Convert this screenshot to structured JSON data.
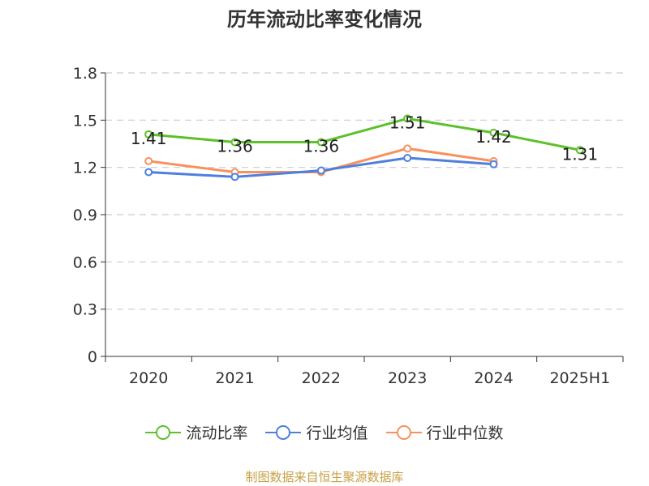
{
  "chart_data": {
    "type": "line",
    "title": "历年流动比率变化情况",
    "categories": [
      "2020",
      "2021",
      "2022",
      "2023",
      "2024",
      "2025H1"
    ],
    "ylim": [
      0,
      1.8
    ],
    "yticks": [
      "0",
      "0.3",
      "0.6",
      "0.9",
      "1.2",
      "1.5",
      "1.8"
    ],
    "grid": true,
    "legend_position": "bottom",
    "series": [
      {
        "name": "流动比率",
        "color": "#5cc12b",
        "values": [
          1.41,
          1.36,
          1.36,
          1.51,
          1.42,
          1.31
        ],
        "labels": [
          "1.41",
          "1.36",
          "1.36",
          "1.51",
          "1.42",
          "1.31"
        ]
      },
      {
        "name": "行业均值",
        "color": "#4f7fdc",
        "values": [
          1.17,
          1.14,
          1.18,
          1.26,
          1.22,
          null
        ]
      },
      {
        "name": "行业中位数",
        "color": "#f7925e",
        "values": [
          1.24,
          1.17,
          1.17,
          1.32,
          1.24,
          null
        ]
      }
    ]
  },
  "source": "制图数据来自恒生聚源数据库"
}
